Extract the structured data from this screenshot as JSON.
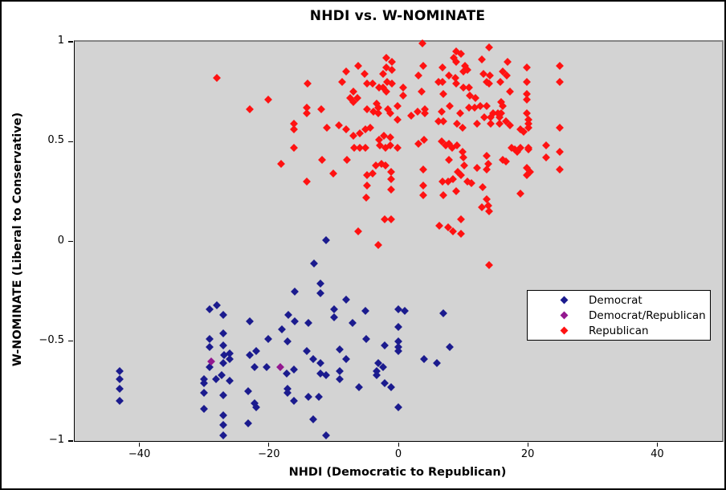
{
  "title": "NHDI vs. W-NOMINATE",
  "axes": {
    "xlabel": "NHDI (Democratic to Republican)",
    "ylabel": "W-NOMINATE (Liberal to Conservative)",
    "x_tick_labels": [
      "−40",
      "−20",
      "0",
      "20",
      "40"
    ],
    "y_tick_labels": [
      "1",
      "0.5",
      "0",
      "−0.5",
      "−1"
    ]
  },
  "legend": {
    "items": [
      {
        "label": "Democrat",
        "color": "#1b1b8e"
      },
      {
        "label": "Democrat/Republican",
        "color": "#93188f"
      },
      {
        "label": "Republican",
        "color": "#ff1212"
      }
    ]
  },
  "colors": {
    "plot_background": "#d3d3d3",
    "democrat": "#1b1b8e",
    "democrat_republican": "#93188f",
    "republican": "#ff1212"
  },
  "chart_data": {
    "type": "scatter",
    "title": "NHDI vs. W-NOMINATE",
    "xlabel": "NHDI (Democratic to Republican)",
    "ylabel": "W-NOMINATE (Liberal to Conservative)",
    "xlim": [
      -50,
      50
    ],
    "ylim": [
      -1,
      1
    ],
    "x_ticks": [
      -40,
      -20,
      0,
      20,
      40
    ],
    "y_ticks": [
      1,
      0.5,
      0,
      -0.5,
      -1
    ],
    "grid": false,
    "legend_position": "center-right",
    "marker": "diamond",
    "series": [
      {
        "name": "Democrat",
        "color": "#1b1b8e",
        "points": [
          [
            -29.2,
            -0.34
          ],
          [
            -28.1,
            -0.32
          ],
          [
            -27,
            -0.37
          ],
          [
            -27,
            -0.46
          ],
          [
            -29.1,
            -0.49
          ],
          [
            -29.1,
            -0.53
          ],
          [
            -27,
            -0.52
          ],
          [
            -26.9,
            -0.57
          ],
          [
            -26,
            -0.56
          ],
          [
            -26,
            -0.59
          ],
          [
            -27,
            -0.61
          ],
          [
            -29.1,
            -0.63
          ],
          [
            -27.3,
            -0.67
          ],
          [
            -28.2,
            -0.69
          ],
          [
            -26,
            -0.7
          ],
          [
            -30,
            -0.69
          ],
          [
            -30,
            -0.71
          ],
          [
            -30,
            -0.76
          ],
          [
            -27,
            -0.77
          ],
          [
            -30,
            -0.84
          ],
          [
            -27,
            -0.87
          ],
          [
            -27,
            -0.92
          ],
          [
            -27,
            -0.97
          ],
          [
            -43,
            -0.65
          ],
          [
            -43,
            -0.69
          ],
          [
            -43,
            -0.74
          ],
          [
            -43,
            -0.8
          ],
          [
            -11.2,
            0.005
          ],
          [
            -13,
            -0.11
          ],
          [
            -12,
            -0.21
          ],
          [
            -16,
            -0.25
          ],
          [
            -12,
            -0.26
          ],
          [
            -8.1,
            -0.29
          ],
          [
            -9.9,
            -0.34
          ],
          [
            -9.9,
            -0.38
          ],
          [
            -5.1,
            -0.35
          ],
          [
            -17,
            -0.37
          ],
          [
            -16,
            -0.4
          ],
          [
            -13.9,
            -0.41
          ],
          [
            -23,
            -0.4
          ],
          [
            -7.1,
            -0.41
          ],
          [
            -18,
            -0.44
          ],
          [
            -20.1,
            -0.49
          ],
          [
            -17.1,
            -0.5
          ],
          [
            -5,
            -0.49
          ],
          [
            -2.1,
            -0.52
          ],
          [
            -23,
            -0.57
          ],
          [
            -22,
            -0.55
          ],
          [
            -14.1,
            -0.55
          ],
          [
            -13.1,
            -0.59
          ],
          [
            -12,
            -0.61
          ],
          [
            -9,
            -0.54
          ],
          [
            -8.1,
            -0.59
          ],
          [
            -22.2,
            -0.63
          ],
          [
            -20.3,
            -0.63
          ],
          [
            -17.2,
            -0.66
          ],
          [
            -16.1,
            -0.64
          ],
          [
            -12,
            -0.66
          ],
          [
            -11.2,
            -0.67
          ],
          [
            -9.1,
            -0.65
          ],
          [
            -9.1,
            -0.69
          ],
          [
            -3.1,
            -0.61
          ],
          [
            -2.4,
            -0.63
          ],
          [
            -3.3,
            -0.65
          ],
          [
            -3.3,
            -0.67
          ],
          [
            -2.1,
            -0.71
          ],
          [
            -1.1,
            -0.73
          ],
          [
            -6.1,
            -0.73
          ],
          [
            -23.2,
            -0.75
          ],
          [
            -17.1,
            -0.74
          ],
          [
            -17.1,
            -0.76
          ],
          [
            -22.2,
            -0.81
          ],
          [
            -22,
            -0.83
          ],
          [
            -16.1,
            -0.8
          ],
          [
            -13.9,
            -0.78
          ],
          [
            -12.3,
            -0.78
          ],
          [
            -13.1,
            -0.89
          ],
          [
            -23.2,
            -0.91
          ],
          [
            -11.2,
            -0.97
          ],
          [
            0,
            -0.34
          ],
          [
            1,
            -0.35
          ],
          [
            7,
            -0.36
          ],
          [
            0,
            -0.43
          ],
          [
            0,
            -0.5
          ],
          [
            0,
            -0.53
          ],
          [
            0,
            -0.55
          ],
          [
            8,
            -0.53
          ],
          [
            4,
            -0.59
          ],
          [
            5.9,
            -0.61
          ],
          [
            0,
            -0.83
          ]
        ]
      },
      {
        "name": "Democrat/Republican",
        "color": "#93188f",
        "points": [
          [
            -28.9,
            -0.6
          ],
          [
            -18.2,
            -0.63
          ]
        ]
      },
      {
        "name": "Republican",
        "color": "#ff1212",
        "points": [
          [
            -28,
            0.82
          ],
          [
            -20.1,
            0.71
          ],
          [
            -23,
            0.66
          ],
          [
            -18.1,
            0.39
          ],
          [
            3.7,
            0.99
          ],
          [
            -1.9,
            0.92
          ],
          [
            -1,
            0.9
          ],
          [
            -6.2,
            0.88
          ],
          [
            3.9,
            0.88
          ],
          [
            -1.8,
            0.87
          ],
          [
            -1,
            0.86
          ],
          [
            -8.1,
            0.85
          ],
          [
            -5.2,
            0.84
          ],
          [
            -2.3,
            0.84
          ],
          [
            3.1,
            0.83
          ],
          [
            -8.7,
            0.8
          ],
          [
            -14,
            0.79
          ],
          [
            -1.7,
            0.8
          ],
          [
            -1,
            0.79
          ],
          [
            -4.8,
            0.79
          ],
          [
            -4,
            0.79
          ],
          [
            -3,
            0.77
          ],
          [
            -2.4,
            0.77
          ],
          [
            -6.9,
            0.75
          ],
          [
            0.7,
            0.77
          ],
          [
            -1.8,
            0.75
          ],
          [
            3.6,
            0.75
          ],
          [
            -7.5,
            0.72
          ],
          [
            -6.3,
            0.72
          ],
          [
            0.7,
            0.73
          ],
          [
            -7,
            0.7
          ],
          [
            -3.4,
            0.69
          ],
          [
            -3.1,
            0.67
          ],
          [
            -14.1,
            0.67
          ],
          [
            -11.9,
            0.66
          ],
          [
            -4.9,
            0.66
          ],
          [
            -1.6,
            0.66
          ],
          [
            -0.1,
            0.68
          ],
          [
            -14.1,
            0.64
          ],
          [
            -3.8,
            0.65
          ],
          [
            -3.1,
            0.64
          ],
          [
            -1.2,
            0.64
          ],
          [
            -0.1,
            0.61
          ],
          [
            2,
            0.63
          ],
          [
            3,
            0.65
          ],
          [
            4.1,
            0.66
          ],
          [
            4.1,
            0.64
          ],
          [
            -16.1,
            0.59
          ],
          [
            -16.1,
            0.56
          ],
          [
            -11,
            0.57
          ],
          [
            -9.2,
            0.58
          ],
          [
            -8.1,
            0.56
          ],
          [
            -5.1,
            0.56
          ],
          [
            -4.3,
            0.57
          ],
          [
            -5.9,
            0.54
          ],
          [
            -7,
            0.53
          ],
          [
            -3,
            0.51
          ],
          [
            -2.2,
            0.53
          ],
          [
            -1.2,
            0.52
          ],
          [
            -2.8,
            0.48
          ],
          [
            -2,
            0.47
          ],
          [
            -1.2,
            0.48
          ],
          [
            -0.1,
            0.47
          ],
          [
            -6.8,
            0.47
          ],
          [
            -5.9,
            0.47
          ],
          [
            -5.1,
            0.47
          ],
          [
            -16.1,
            0.47
          ],
          [
            3.1,
            0.49
          ],
          [
            4,
            0.51
          ],
          [
            -11.8,
            0.41
          ],
          [
            -7.9,
            0.41
          ],
          [
            -3.5,
            0.38
          ],
          [
            -2.6,
            0.39
          ],
          [
            -2,
            0.38
          ],
          [
            -10,
            0.34
          ],
          [
            -4.9,
            0.33
          ],
          [
            -4,
            0.34
          ],
          [
            -1.1,
            0.35
          ],
          [
            -1.1,
            0.31
          ],
          [
            -14.1,
            0.3
          ],
          [
            -4.9,
            0.28
          ],
          [
            -1.1,
            0.26
          ],
          [
            3.9,
            0.36
          ],
          [
            3.9,
            0.28
          ],
          [
            -5,
            0.22
          ],
          [
            3.8,
            0.23
          ],
          [
            -2.1,
            0.11
          ],
          [
            -1.1,
            0.11
          ],
          [
            -6.2,
            0.05
          ],
          [
            8.9,
            0.95
          ],
          [
            9.7,
            0.94
          ],
          [
            8.6,
            0.92
          ],
          [
            14,
            0.97
          ],
          [
            12.9,
            0.91
          ],
          [
            16.9,
            0.9
          ],
          [
            8.9,
            0.9
          ],
          [
            10.3,
            0.88
          ],
          [
            6.8,
            0.87
          ],
          [
            19.8,
            0.87
          ],
          [
            24.9,
            0.88
          ],
          [
            10,
            0.85
          ],
          [
            10.7,
            0.86
          ],
          [
            7.8,
            0.83
          ],
          [
            8.8,
            0.82
          ],
          [
            13.2,
            0.84
          ],
          [
            14.1,
            0.83
          ],
          [
            16.1,
            0.85
          ],
          [
            16.8,
            0.83
          ],
          [
            6.8,
            0.8
          ],
          [
            6.2,
            0.8
          ],
          [
            8.9,
            0.79
          ],
          [
            10,
            0.77
          ],
          [
            10.9,
            0.77
          ],
          [
            13.6,
            0.8
          ],
          [
            14,
            0.79
          ],
          [
            15.8,
            0.8
          ],
          [
            17.3,
            0.75
          ],
          [
            19.9,
            0.8
          ],
          [
            24.9,
            0.8
          ],
          [
            7,
            0.74
          ],
          [
            11.1,
            0.73
          ],
          [
            11.9,
            0.72
          ],
          [
            15.9,
            0.7
          ],
          [
            19.8,
            0.74
          ],
          [
            19.9,
            0.71
          ],
          [
            16.1,
            0.68
          ],
          [
            7.9,
            0.68
          ],
          [
            6.7,
            0.65
          ],
          [
            9.6,
            0.64
          ],
          [
            10.9,
            0.67
          ],
          [
            11.8,
            0.67
          ],
          [
            12.6,
            0.68
          ],
          [
            13.6,
            0.68
          ],
          [
            14.6,
            0.64
          ],
          [
            15.4,
            0.64
          ],
          [
            15.9,
            0.64
          ],
          [
            19.8,
            0.64
          ],
          [
            20.1,
            0.61
          ],
          [
            20.1,
            0.59
          ],
          [
            6.2,
            0.6
          ],
          [
            7,
            0.6
          ],
          [
            9,
            0.59
          ],
          [
            9.9,
            0.57
          ],
          [
            12.1,
            0.59
          ],
          [
            13.3,
            0.62
          ],
          [
            14.3,
            0.62
          ],
          [
            14.3,
            0.59
          ],
          [
            15.6,
            0.62
          ],
          [
            15.6,
            0.59
          ],
          [
            16.6,
            0.6
          ],
          [
            17.2,
            0.58
          ],
          [
            18.9,
            0.56
          ],
          [
            19.4,
            0.55
          ],
          [
            20.1,
            0.57
          ],
          [
            24.9,
            0.57
          ],
          [
            6.7,
            0.5
          ],
          [
            7.3,
            0.48
          ],
          [
            7.8,
            0.49
          ],
          [
            8.3,
            0.47
          ],
          [
            9,
            0.48
          ],
          [
            9.9,
            0.45
          ],
          [
            10,
            0.42
          ],
          [
            7.8,
            0.41
          ],
          [
            10.2,
            0.38
          ],
          [
            12.2,
            0.37
          ],
          [
            13.7,
            0.43
          ],
          [
            13.9,
            0.39
          ],
          [
            13.7,
            0.36
          ],
          [
            16.1,
            0.41
          ],
          [
            16.6,
            0.4
          ],
          [
            17.5,
            0.47
          ],
          [
            18,
            0.46
          ],
          [
            18.4,
            0.45
          ],
          [
            18.9,
            0.47
          ],
          [
            20.1,
            0.47
          ],
          [
            20.1,
            0.46
          ],
          [
            22.8,
            0.48
          ],
          [
            22.8,
            0.42
          ],
          [
            24.9,
            0.45
          ],
          [
            19.8,
            0.37
          ],
          [
            20.3,
            0.35
          ],
          [
            19.8,
            0.33
          ],
          [
            24.9,
            0.36
          ],
          [
            9.2,
            0.35
          ],
          [
            9.7,
            0.33
          ],
          [
            8.4,
            0.31
          ],
          [
            7.7,
            0.3
          ],
          [
            6.8,
            0.3
          ],
          [
            10.7,
            0.3
          ],
          [
            11.3,
            0.29
          ],
          [
            8.9,
            0.25
          ],
          [
            13,
            0.27
          ],
          [
            7,
            0.23
          ],
          [
            18.9,
            0.24
          ],
          [
            13.7,
            0.21
          ],
          [
            13.9,
            0.18
          ],
          [
            12.9,
            0.17
          ],
          [
            14,
            0.15
          ],
          [
            9.7,
            0.11
          ],
          [
            6.3,
            0.08
          ],
          [
            7.7,
            0.07
          ],
          [
            8.4,
            0.05
          ],
          [
            9.7,
            0.04
          ],
          [
            -3.1,
            -0.02
          ],
          [
            14,
            -0.12
          ]
        ]
      }
    ]
  }
}
